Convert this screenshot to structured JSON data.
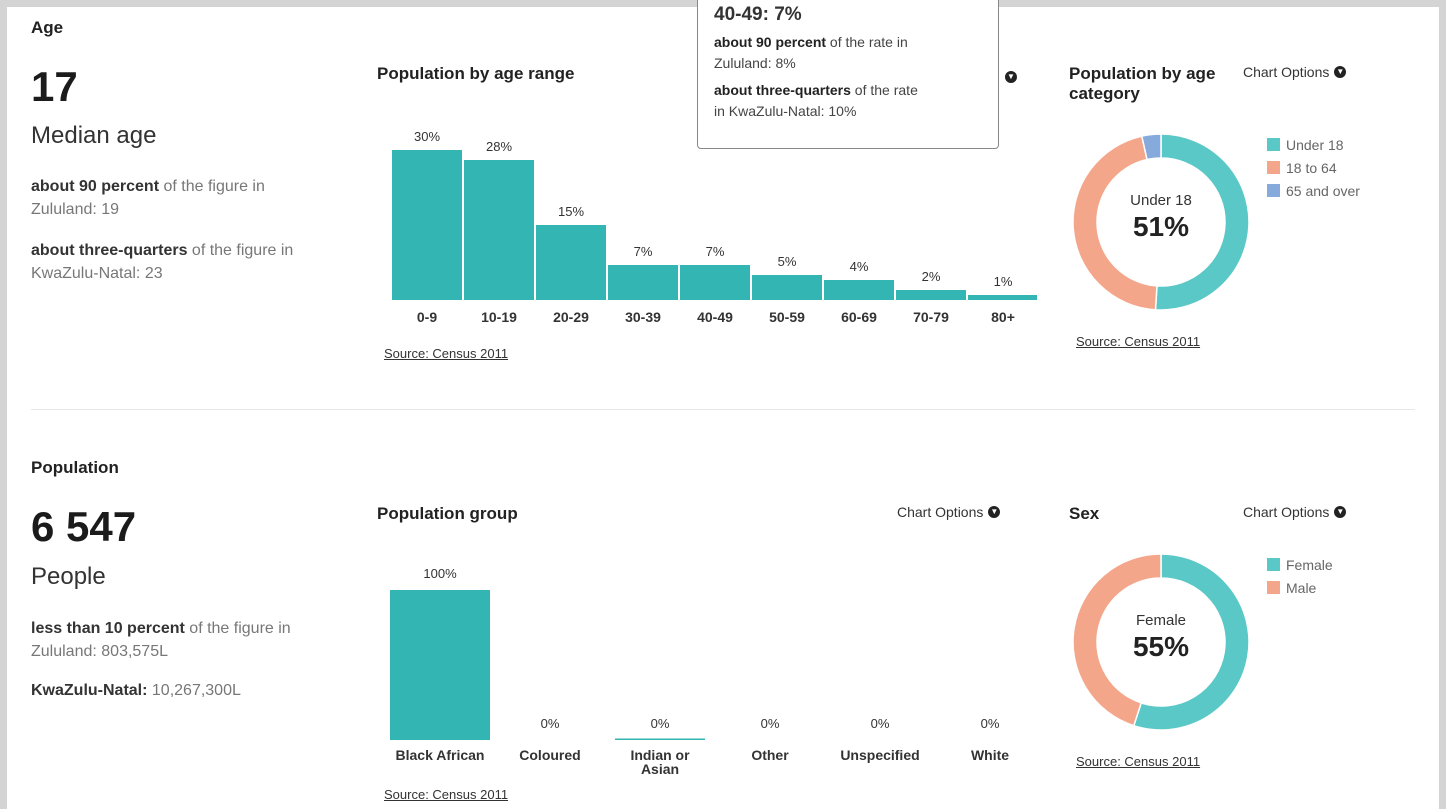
{
  "age": {
    "section_title": "Age",
    "figure": "17",
    "figure_label": "Median age",
    "comparisons": [
      {
        "bold": "about 90 percent",
        "rest": " of the figure in",
        "place": "Zululand: 19"
      },
      {
        "bold": "about three-quarters",
        "rest": " of the figure in",
        "place": "KwaZulu-Natal: 23"
      }
    ],
    "range_chart": {
      "title": "Population by age range",
      "source": "Source: Census 2011"
    },
    "category_chart": {
      "title": "Population by age category",
      "options_label": "Chart Options",
      "source": "Source: Census 2011",
      "center_label": "Under 18",
      "center_value": "51%"
    },
    "tooltip": {
      "head": "40-49: 7%",
      "line1_bold": "about 90 percent",
      "line1_rest": " of the rate in",
      "line1_place": "Zululand: 8%",
      "line2_bold": "about three-quarters",
      "line2_rest": " of the rate",
      "line2_place": "in KwaZulu-Natal: 10%"
    }
  },
  "population": {
    "section_title": "Population",
    "figure": "6 547",
    "figure_label": "People",
    "comparisons": [
      {
        "bold": "less than 10 percent",
        "rest": " of the figure in",
        "place": "Zululand: 803,575L"
      },
      {
        "bold": "KwaZulu-Natal:",
        "rest": " 10,267,300L",
        "place": ""
      }
    ],
    "group_chart": {
      "title": "Population group",
      "options_label": "Chart Options",
      "source": "Source: Census 2011"
    },
    "sex_chart": {
      "title": "Sex",
      "options_label": "Chart Options",
      "source": "Source: Census 2011",
      "center_label": "Female",
      "center_value": "55%"
    }
  },
  "colors": {
    "teal": "#33b5b4",
    "donut_teal": "#5ac8c6",
    "salmon": "#f4a68a",
    "blue": "#86aadb"
  },
  "chart_data": [
    {
      "type": "bar",
      "title": "Population by age range",
      "categories": [
        "0-9",
        "10-19",
        "20-29",
        "30-39",
        "40-49",
        "50-59",
        "60-69",
        "70-79",
        "80+"
      ],
      "values": [
        30,
        28,
        15,
        7,
        7,
        5,
        4,
        2,
        1
      ],
      "value_labels": [
        "30%",
        "28%",
        "15%",
        "7%",
        "7%",
        "5%",
        "4%",
        "2%",
        "1%"
      ],
      "ylim": [
        0,
        30
      ]
    },
    {
      "type": "pie",
      "title": "Population by age category",
      "categories": [
        "Under 18",
        "18 to 64",
        "65 and over"
      ],
      "values": [
        51,
        45.5,
        3.5
      ],
      "colors": [
        "#5ac8c6",
        "#f4a68a",
        "#86aadb"
      ],
      "legend": "right"
    },
    {
      "type": "bar",
      "title": "Population group",
      "categories": [
        "Black African",
        "Coloured",
        "Indian or Asian",
        "Other",
        "Unspecified",
        "White"
      ],
      "label_lines": [
        [
          "Black African"
        ],
        [
          "Coloured"
        ],
        [
          "Indian or",
          "Asian"
        ],
        [
          "Other"
        ],
        [
          "Unspecified"
        ],
        [
          "White"
        ]
      ],
      "values": [
        100,
        0,
        0,
        0,
        0,
        0
      ],
      "value_labels": [
        "100%",
        "0%",
        "0%",
        "0%",
        "0%",
        "0%"
      ],
      "ylim": [
        0,
        100
      ]
    },
    {
      "type": "pie",
      "title": "Sex",
      "categories": [
        "Female",
        "Male"
      ],
      "values": [
        55,
        45
      ],
      "colors": [
        "#5ac8c6",
        "#f4a68a"
      ],
      "legend": "right"
    }
  ]
}
